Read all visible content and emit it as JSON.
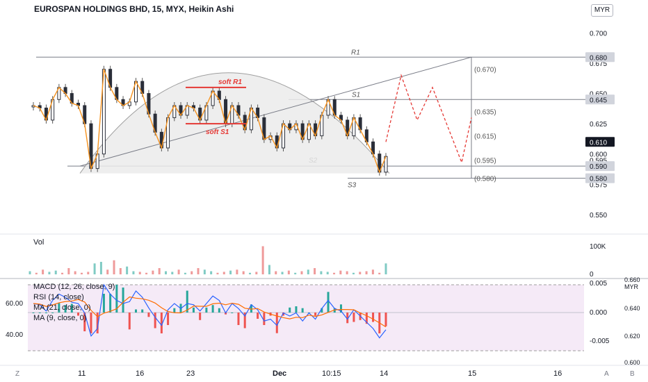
{
  "header": {
    "title": "EUROSPAN HOLDINGS BHD, 15, MYX, Heikin Ashi",
    "currency": "MYR"
  },
  "colors": {
    "up": "#26a69a",
    "down": "#ef5350",
    "zigzag": "#f7931e",
    "annot": "#e53935",
    "rsiBg": "#f3e5f5",
    "macd": "#2962ff",
    "signal": "#ff6d00"
  },
  "chart_data": [
    {
      "type": "candlestick",
      "panel": "price",
      "ylim": [
        0.535,
        0.71
      ],
      "y_ticks": [
        "0.700",
        "0.675",
        "0.650",
        "0.625",
        "0.600",
        "0.575",
        "0.550"
      ],
      "x_ticks": [
        "11",
        "16",
        "23",
        "Dec",
        "10:15",
        "14",
        "15",
        "16"
      ],
      "price_labels": [
        {
          "text": "0.680",
          "value": 0.68
        },
        {
          "text": "0.645",
          "value": 0.645
        },
        {
          "text": "0.610",
          "value": 0.61
        },
        {
          "text": "0.595",
          "value": 0.595
        },
        {
          "text": "0.590",
          "value": 0.59
        },
        {
          "text": "0.580",
          "value": 0.58
        }
      ],
      "levels": [
        {
          "name": "R1",
          "value": 0.68
        },
        {
          "name": "S1",
          "value": 0.645
        },
        {
          "name": "S2",
          "value": 0.59
        },
        {
          "name": "S3",
          "value": 0.58
        }
      ],
      "projection_labels": [
        "(0.670)",
        "(0.635)",
        "(0.615)",
        "(0.595)",
        "(0.580)"
      ],
      "annotations": [
        "soft R1",
        "soft S1"
      ],
      "series_shape": [
        0.64,
        0.638,
        0.628,
        0.645,
        0.655,
        0.65,
        0.642,
        0.64,
        0.625,
        0.588,
        0.6,
        0.67,
        0.655,
        0.645,
        0.64,
        0.643,
        0.66,
        0.65,
        0.633,
        0.618,
        0.605,
        0.63,
        0.64,
        0.632,
        0.64,
        0.638,
        0.628,
        0.64,
        0.652,
        0.645,
        0.625,
        0.64,
        0.632,
        0.62,
        0.638,
        0.63,
        0.612,
        0.615,
        0.605,
        0.625,
        0.62,
        0.625,
        0.612,
        0.625,
        0.615,
        0.632,
        0.645,
        0.632,
        0.628,
        0.615,
        0.63,
        0.62,
        0.61,
        0.6,
        0.585,
        0.598
      ]
    },
    {
      "type": "bar",
      "panel": "volume",
      "name": "Vol",
      "y_ticks": [
        "100K",
        "0"
      ],
      "series_shape": [
        0.1,
        0.05,
        0.15,
        0.08,
        0.12,
        0.05,
        0.2,
        0.1,
        0.05,
        0.08,
        0.35,
        0.4,
        0.15,
        0.45,
        0.2,
        0.25,
        0.1,
        0.08,
        0.05,
        0.12,
        0.2,
        0.1,
        0.08,
        0.15,
        0.05,
        0.1,
        0.2,
        0.15,
        0.1,
        0.05,
        0.08,
        0.12,
        0.15,
        0.1,
        0.05,
        0.08,
        0.9,
        0.3,
        0.1,
        0.08,
        0.12,
        0.05,
        0.1,
        0.15,
        0.2,
        0.1,
        0.08,
        0.05,
        0.12,
        0.1,
        0.05,
        0.08,
        0.1,
        0.15,
        0.05,
        0.35
      ]
    },
    {
      "type": "line",
      "panel": "indicators",
      "legend": [
        "MACD (12, 26, close, 9)",
        "RSI (14, close)",
        "MA (21, close, 0)",
        "MA (9, close, 0)"
      ],
      "left_ticks": [
        "60.00",
        "40.00"
      ],
      "right_ticks": [
        "0.005",
        "0.000",
        "-0.005"
      ],
      "far_right_ticks": [
        "0.660",
        "0.640",
        "0.620",
        "0.600"
      ],
      "far_right_currency": "MYR"
    }
  ],
  "bottom_bar": {
    "left": "Z",
    "right": [
      "A",
      "B"
    ]
  }
}
